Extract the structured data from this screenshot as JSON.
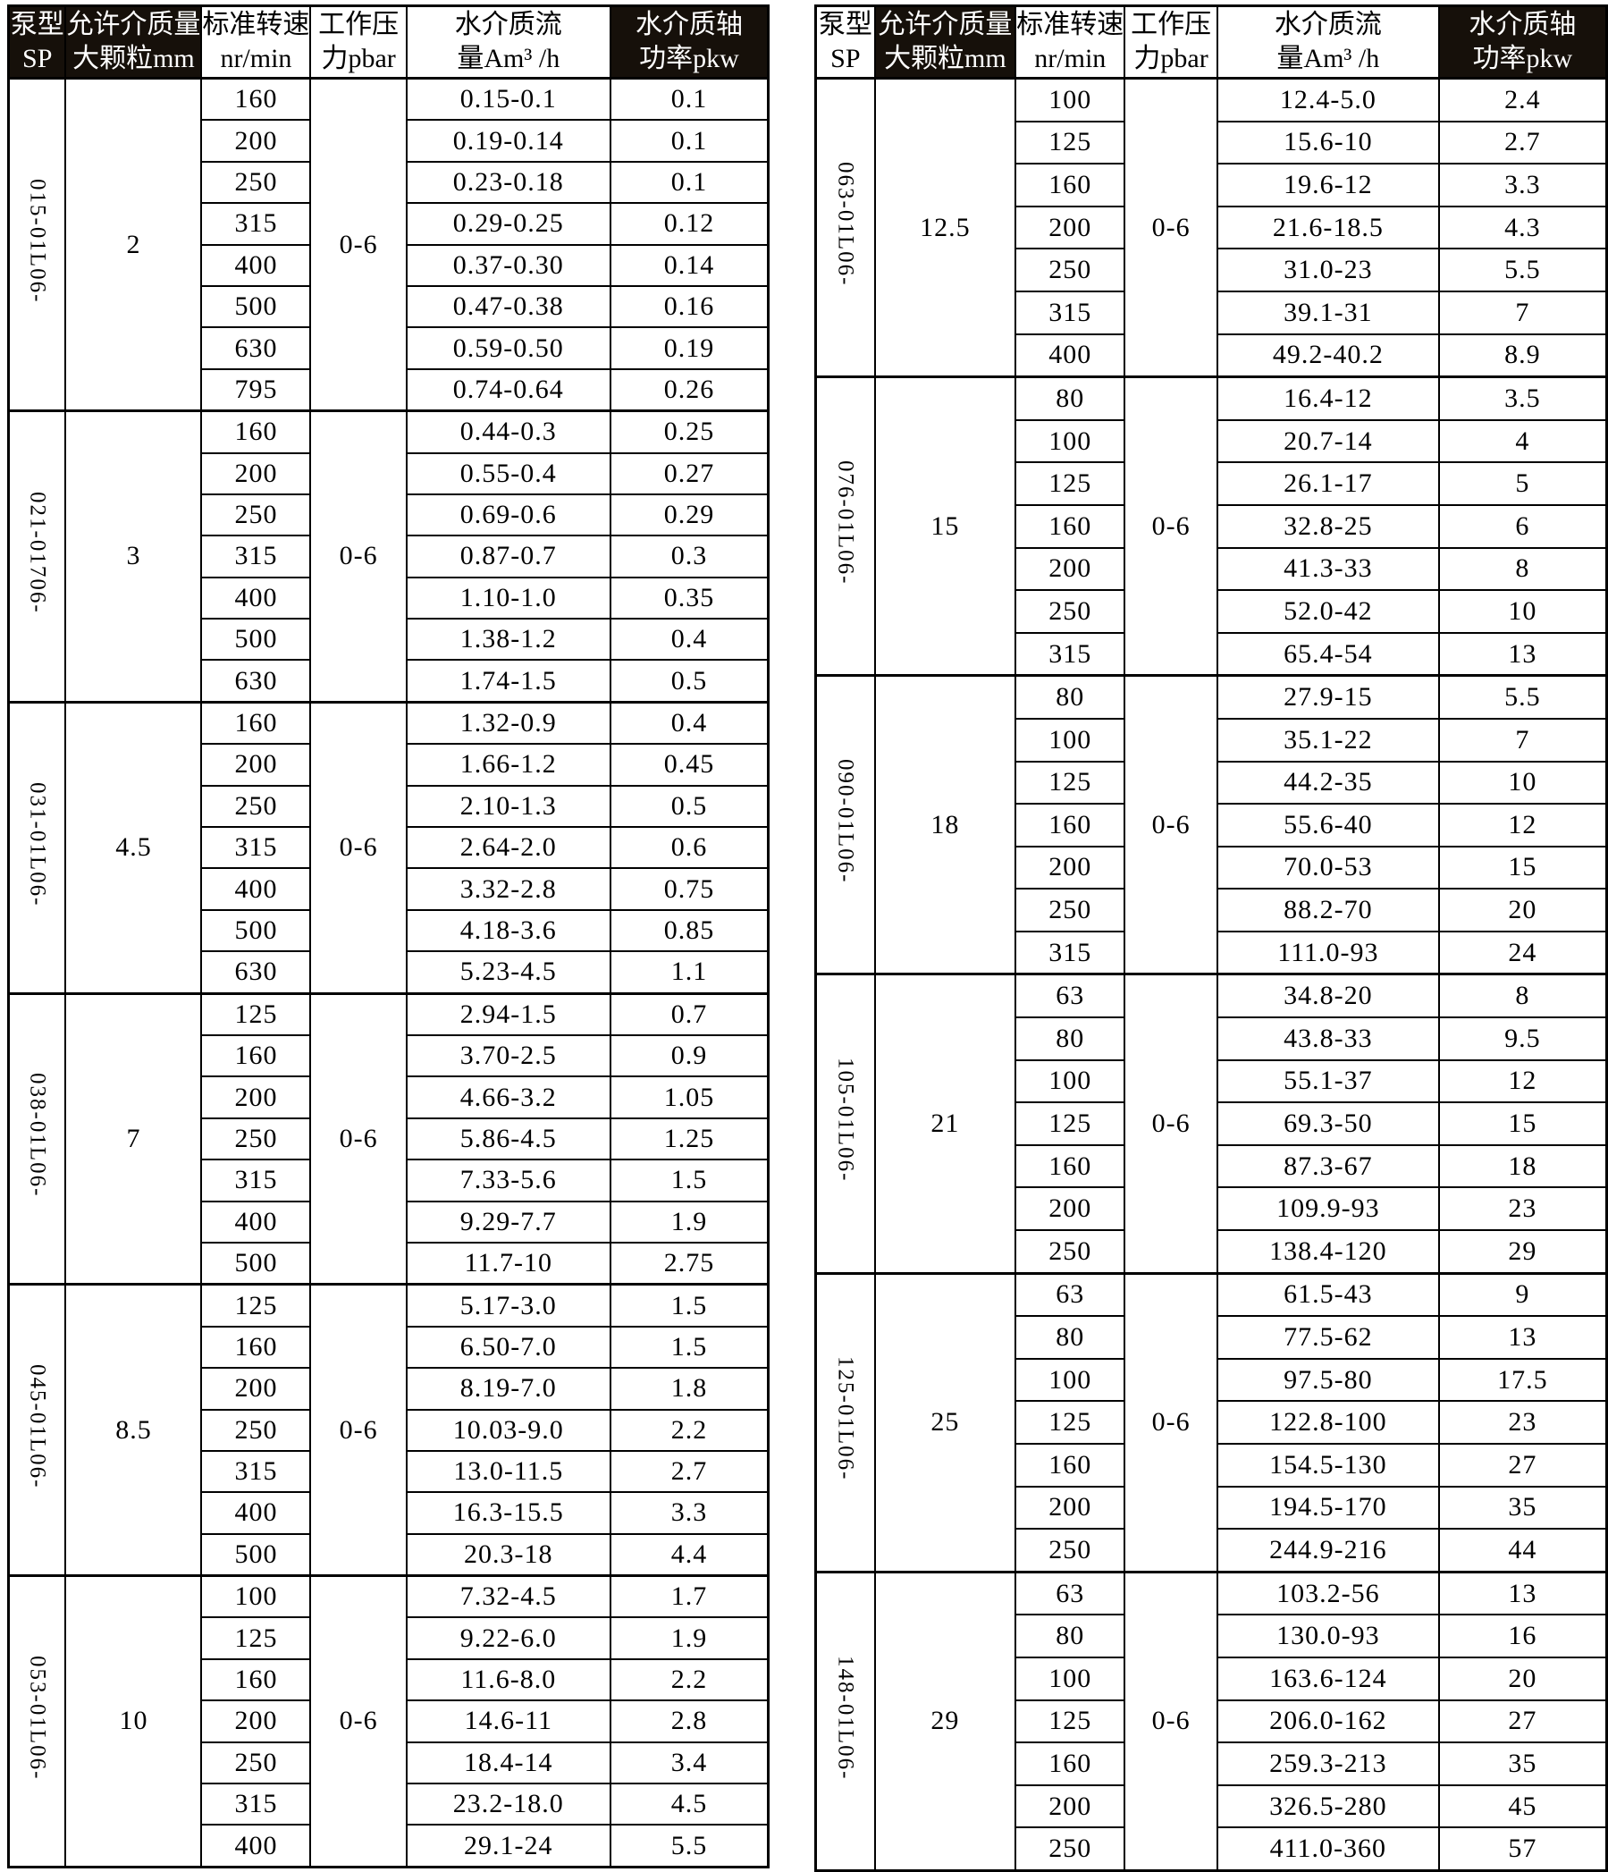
{
  "colors": {
    "header_bg": "#16100a",
    "header_fg": "#ffffff",
    "border": "#000000",
    "page_bg": "#ffffff",
    "text": "#000000"
  },
  "headers": {
    "pump": {
      "line1": "泵型",
      "line2": "SP"
    },
    "particle": {
      "line1": "允许介质量",
      "line2": "大颗粒mm"
    },
    "speed": {
      "line1": "标准转速",
      "line2": "nr/min"
    },
    "pressure": {
      "line1": "工作压",
      "line2": "力pbar"
    },
    "flow": {
      "line1": "水介质流",
      "line2": "量Am³ /h"
    },
    "power": {
      "line1": "水介质轴",
      "line2": "功率pkw"
    }
  },
  "tables": [
    {
      "side": "left",
      "blocks": [
        {
          "model": "015-01L06-",
          "particle_mm": "2",
          "pressure": "0-6",
          "rows": [
            {
              "speed": "160",
              "flow": "0.15-0.1",
              "power": "0.1"
            },
            {
              "speed": "200",
              "flow": "0.19-0.14",
              "power": "0.1"
            },
            {
              "speed": "250",
              "flow": "0.23-0.18",
              "power": "0.1"
            },
            {
              "speed": "315",
              "flow": "0.29-0.25",
              "power": "0.12"
            },
            {
              "speed": "400",
              "flow": "0.37-0.30",
              "power": "0.14"
            },
            {
              "speed": "500",
              "flow": "0.47-0.38",
              "power": "0.16"
            },
            {
              "speed": "630",
              "flow": "0.59-0.50",
              "power": "0.19"
            },
            {
              "speed": "795",
              "flow": "0.74-0.64",
              "power": "0.26"
            }
          ]
        },
        {
          "model": "021-01706-",
          "particle_mm": "3",
          "pressure": "0-6",
          "rows": [
            {
              "speed": "160",
              "flow": "0.44-0.3",
              "power": "0.25"
            },
            {
              "speed": "200",
              "flow": "0.55-0.4",
              "power": "0.27"
            },
            {
              "speed": "250",
              "flow": "0.69-0.6",
              "power": "0.29"
            },
            {
              "speed": "315",
              "flow": "0.87-0.7",
              "power": "0.3"
            },
            {
              "speed": "400",
              "flow": "1.10-1.0",
              "power": "0.35"
            },
            {
              "speed": "500",
              "flow": "1.38-1.2",
              "power": "0.4"
            },
            {
              "speed": "630",
              "flow": "1.74-1.5",
              "power": "0.5"
            }
          ]
        },
        {
          "model": "031-01L06-",
          "particle_mm": "4.5",
          "pressure": "0-6",
          "rows": [
            {
              "speed": "160",
              "flow": "1.32-0.9",
              "power": "0.4"
            },
            {
              "speed": "200",
              "flow": "1.66-1.2",
              "power": "0.45"
            },
            {
              "speed": "250",
              "flow": "2.10-1.3",
              "power": "0.5"
            },
            {
              "speed": "315",
              "flow": "2.64-2.0",
              "power": "0.6"
            },
            {
              "speed": "400",
              "flow": "3.32-2.8",
              "power": "0.75"
            },
            {
              "speed": "500",
              "flow": "4.18-3.6",
              "power": "0.85"
            },
            {
              "speed": "630",
              "flow": "5.23-4.5",
              "power": "1.1"
            }
          ]
        },
        {
          "model": "038-01L06-",
          "particle_mm": "7",
          "pressure": "0-6",
          "rows": [
            {
              "speed": "125",
              "flow": "2.94-1.5",
              "power": "0.7"
            },
            {
              "speed": "160",
              "flow": "3.70-2.5",
              "power": "0.9"
            },
            {
              "speed": "200",
              "flow": "4.66-3.2",
              "power": "1.05"
            },
            {
              "speed": "250",
              "flow": "5.86-4.5",
              "power": "1.25"
            },
            {
              "speed": "315",
              "flow": "7.33-5.6",
              "power": "1.5"
            },
            {
              "speed": "400",
              "flow": "9.29-7.7",
              "power": "1.9"
            },
            {
              "speed": "500",
              "flow": "11.7-10",
              "power": "2.75"
            }
          ]
        },
        {
          "model": "045-01L06-",
          "particle_mm": "8.5",
          "pressure": "0-6",
          "rows": [
            {
              "speed": "125",
              "flow": "5.17-3.0",
              "power": "1.5"
            },
            {
              "speed": "160",
              "flow": "6.50-7.0",
              "power": "1.5"
            },
            {
              "speed": "200",
              "flow": "8.19-7.0",
              "power": "1.8"
            },
            {
              "speed": "250",
              "flow": "10.03-9.0",
              "power": "2.2"
            },
            {
              "speed": "315",
              "flow": "13.0-11.5",
              "power": "2.7"
            },
            {
              "speed": "400",
              "flow": "16.3-15.5",
              "power": "3.3"
            },
            {
              "speed": "500",
              "flow": "20.3-18",
              "power": "4.4"
            }
          ]
        },
        {
          "model": "053-01L06-",
          "particle_mm": "10",
          "pressure": "0-6",
          "rows": [
            {
              "speed": "100",
              "flow": "7.32-4.5",
              "power": "1.7"
            },
            {
              "speed": "125",
              "flow": "9.22-6.0",
              "power": "1.9"
            },
            {
              "speed": "160",
              "flow": "11.6-8.0",
              "power": "2.2"
            },
            {
              "speed": "200",
              "flow": "14.6-11",
              "power": "2.8"
            },
            {
              "speed": "250",
              "flow": "18.4-14",
              "power": "3.4"
            },
            {
              "speed": "315",
              "flow": "23.2-18.0",
              "power": "4.5"
            },
            {
              "speed": "400",
              "flow": "29.1-24",
              "power": "5.5"
            }
          ]
        }
      ]
    },
    {
      "side": "right",
      "blocks": [
        {
          "model": "063-01L06-",
          "particle_mm": "12.5",
          "pressure": "0-6",
          "rows": [
            {
              "speed": "100",
              "flow": "12.4-5.0",
              "power": "2.4"
            },
            {
              "speed": "125",
              "flow": "15.6-10",
              "power": "2.7"
            },
            {
              "speed": "160",
              "flow": "19.6-12",
              "power": "3.3"
            },
            {
              "speed": "200",
              "flow": "21.6-18.5",
              "power": "4.3"
            },
            {
              "speed": "250",
              "flow": "31.0-23",
              "power": "5.5"
            },
            {
              "speed": "315",
              "flow": "39.1-31",
              "power": "7"
            },
            {
              "speed": "400",
              "flow": "49.2-40.2",
              "power": "8.9"
            }
          ]
        },
        {
          "model": "076-01L06-",
          "particle_mm": "15",
          "pressure": "0-6",
          "rows": [
            {
              "speed": "80",
              "flow": "16.4-12",
              "power": "3.5"
            },
            {
              "speed": "100",
              "flow": "20.7-14",
              "power": "4"
            },
            {
              "speed": "125",
              "flow": "26.1-17",
              "power": "5"
            },
            {
              "speed": "160",
              "flow": "32.8-25",
              "power": "6"
            },
            {
              "speed": "200",
              "flow": "41.3-33",
              "power": "8"
            },
            {
              "speed": "250",
              "flow": "52.0-42",
              "power": "10"
            },
            {
              "speed": "315",
              "flow": "65.4-54",
              "power": "13"
            }
          ]
        },
        {
          "model": "090-01L06-",
          "particle_mm": "18",
          "pressure": "0-6",
          "rows": [
            {
              "speed": "80",
              "flow": "27.9-15",
              "power": "5.5"
            },
            {
              "speed": "100",
              "flow": "35.1-22",
              "power": "7"
            },
            {
              "speed": "125",
              "flow": "44.2-35",
              "power": "10"
            },
            {
              "speed": "160",
              "flow": "55.6-40",
              "power": "12"
            },
            {
              "speed": "200",
              "flow": "70.0-53",
              "power": "15"
            },
            {
              "speed": "250",
              "flow": "88.2-70",
              "power": "20"
            },
            {
              "speed": "315",
              "flow": "111.0-93",
              "power": "24"
            }
          ]
        },
        {
          "model": "105-01L06-",
          "particle_mm": "21",
          "pressure": "0-6",
          "rows": [
            {
              "speed": "63",
              "flow": "34.8-20",
              "power": "8"
            },
            {
              "speed": "80",
              "flow": "43.8-33",
              "power": "9.5"
            },
            {
              "speed": "100",
              "flow": "55.1-37",
              "power": "12"
            },
            {
              "speed": "125",
              "flow": "69.3-50",
              "power": "15"
            },
            {
              "speed": "160",
              "flow": "87.3-67",
              "power": "18"
            },
            {
              "speed": "200",
              "flow": "109.9-93",
              "power": "23"
            },
            {
              "speed": "250",
              "flow": "138.4-120",
              "power": "29"
            }
          ]
        },
        {
          "model": "125-01L06-",
          "particle_mm": "25",
          "pressure": "0-6",
          "rows": [
            {
              "speed": "63",
              "flow": "61.5-43",
              "power": "9"
            },
            {
              "speed": "80",
              "flow": "77.5-62",
              "power": "13"
            },
            {
              "speed": "100",
              "flow": "97.5-80",
              "power": "17.5"
            },
            {
              "speed": "125",
              "flow": "122.8-100",
              "power": "23"
            },
            {
              "speed": "160",
              "flow": "154.5-130",
              "power": "27"
            },
            {
              "speed": "200",
              "flow": "194.5-170",
              "power": "35"
            },
            {
              "speed": "250",
              "flow": "244.9-216",
              "power": "44"
            }
          ]
        },
        {
          "model": "148-01L06-",
          "particle_mm": "29",
          "pressure": "0-6",
          "rows": [
            {
              "speed": "63",
              "flow": "103.2-56",
              "power": "13"
            },
            {
              "speed": "80",
              "flow": "130.0-93",
              "power": "16"
            },
            {
              "speed": "100",
              "flow": "163.6-124",
              "power": "20"
            },
            {
              "speed": "125",
              "flow": "206.0-162",
              "power": "27"
            },
            {
              "speed": "160",
              "flow": "259.3-213",
              "power": "35"
            },
            {
              "speed": "200",
              "flow": "326.5-280",
              "power": "45"
            },
            {
              "speed": "250",
              "flow": "411.0-360",
              "power": "57"
            }
          ]
        }
      ]
    }
  ]
}
